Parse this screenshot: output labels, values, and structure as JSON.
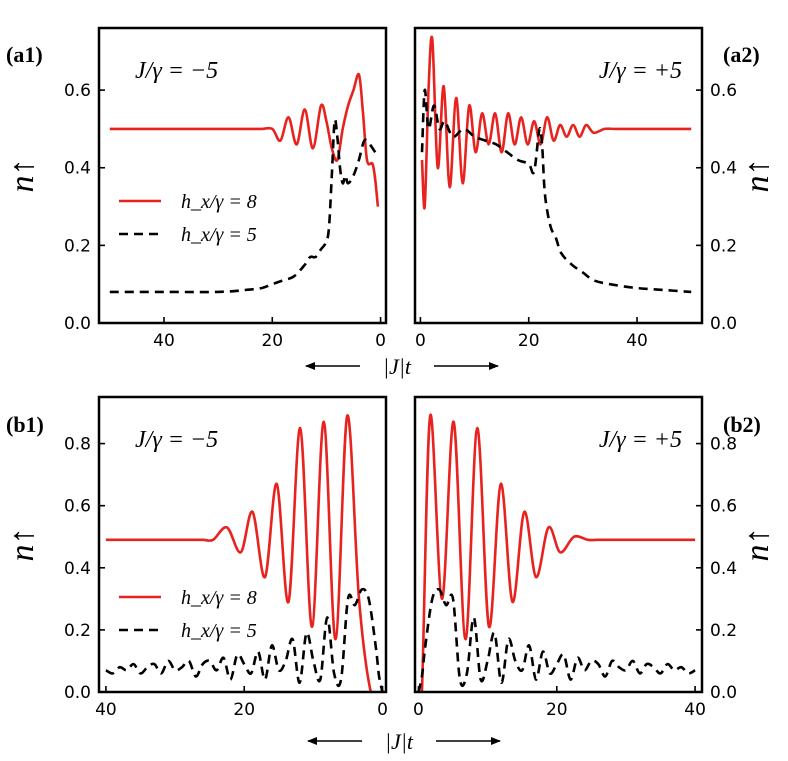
{
  "colors": {
    "red": "#e8231f",
    "black": "#000000"
  },
  "xlabel": "|J|t",
  "ylabel": "n↑",
  "legend": {
    "red": "h_x/γ = 8",
    "black": "h_x/γ = 5"
  },
  "chart_data": [
    {
      "id": "a1",
      "label": "(a1)",
      "type": "line",
      "annotation": "J/γ = −5",
      "xlim": [
        52,
        -1
      ],
      "ylim": [
        0,
        0.76
      ],
      "xticks": [
        40,
        20,
        0
      ],
      "yticks": [
        0.0,
        0.2,
        0.4,
        0.6
      ],
      "ylabel_side": "left",
      "legend": true,
      "series": [
        {
          "name": "h_x/γ = 8",
          "color": "#e8231f",
          "dash": false,
          "x": [
            50,
            45,
            40,
            35,
            30,
            25,
            22,
            20,
            18.5,
            17,
            15.5,
            14,
            12.5,
            11,
            10,
            9,
            8,
            7,
            6,
            5,
            4,
            3.3,
            2.5,
            1.5,
            1,
            0.5
          ],
          "y": [
            0.5,
            0.5,
            0.5,
            0.5,
            0.5,
            0.5,
            0.5,
            0.5,
            0.47,
            0.53,
            0.46,
            0.55,
            0.45,
            0.56,
            0.52,
            0.45,
            0.42,
            0.5,
            0.56,
            0.6,
            0.64,
            0.55,
            0.42,
            0.41,
            0.37,
            0.3
          ]
        },
        {
          "name": "h_x/γ = 5",
          "color": "#000000",
          "dash": true,
          "x": [
            50,
            40,
            30,
            25,
            22,
            20,
            18,
            16,
            14,
            13,
            12,
            11,
            10,
            9.5,
            9,
            8.5,
            8,
            7.5,
            7,
            6.5,
            6,
            5,
            4,
            3,
            2,
            1,
            0.5
          ],
          "y": [
            0.08,
            0.08,
            0.08,
            0.085,
            0.09,
            0.1,
            0.11,
            0.12,
            0.15,
            0.17,
            0.17,
            0.19,
            0.21,
            0.25,
            0.38,
            0.52,
            0.48,
            0.4,
            0.36,
            0.38,
            0.36,
            0.38,
            0.42,
            0.47,
            0.46,
            0.44,
            0.43
          ]
        }
      ]
    },
    {
      "id": "a2",
      "label": "(a2)",
      "type": "line",
      "annotation": "J/γ = +5",
      "xlim": [
        -1,
        52
      ],
      "ylim": [
        0,
        0.76
      ],
      "xticks": [
        0,
        20,
        40
      ],
      "yticks": [
        0.0,
        0.2,
        0.4,
        0.6
      ],
      "ylabel_side": "right",
      "legend": false,
      "series": [
        {
          "name": "h_x/γ = 8",
          "color": "#e8231f",
          "dash": false,
          "x": [
            0.3,
            0.8,
            1.5,
            2.2,
            3.2,
            4.3,
            5.4,
            6.6,
            7.8,
            9,
            10.2,
            11.4,
            12.6,
            13.8,
            15,
            16.2,
            17.4,
            18.6,
            19.8,
            21,
            22.2,
            23.4,
            24.6,
            25.8,
            27,
            28.2,
            29.4,
            30.6,
            32,
            34,
            36,
            40,
            45,
            50
          ],
          "y": [
            0.42,
            0.3,
            0.6,
            0.73,
            0.4,
            0.61,
            0.35,
            0.58,
            0.36,
            0.56,
            0.44,
            0.54,
            0.46,
            0.54,
            0.44,
            0.54,
            0.46,
            0.53,
            0.46,
            0.52,
            0.46,
            0.53,
            0.47,
            0.51,
            0.48,
            0.51,
            0.48,
            0.51,
            0.49,
            0.5,
            0.5,
            0.5,
            0.5,
            0.5
          ]
        },
        {
          "name": "h_x/γ = 5",
          "color": "#000000",
          "dash": true,
          "x": [
            0.3,
            0.8,
            1.5,
            2.5,
            3.5,
            4.5,
            6,
            8,
            10,
            12,
            14,
            16,
            18,
            20,
            21,
            22,
            22.5,
            23,
            24,
            25,
            26,
            28,
            30,
            32,
            35,
            40,
            45,
            50
          ],
          "y": [
            0.44,
            0.6,
            0.5,
            0.56,
            0.5,
            0.52,
            0.48,
            0.5,
            0.48,
            0.47,
            0.46,
            0.44,
            0.42,
            0.41,
            0.39,
            0.5,
            0.45,
            0.33,
            0.25,
            0.22,
            0.18,
            0.15,
            0.13,
            0.11,
            0.1,
            0.09,
            0.085,
            0.08
          ]
        }
      ]
    },
    {
      "id": "b1",
      "label": "(b1)",
      "type": "line",
      "annotation": "J/γ = −5",
      "xlim": [
        41,
        -0.5
      ],
      "ylim": [
        0,
        0.95
      ],
      "xticks": [
        40,
        20,
        0
      ],
      "yticks": [
        0.0,
        0.2,
        0.4,
        0.6,
        0.8
      ],
      "ylabel_side": "left",
      "legend": true,
      "series": [
        {
          "name": "h_x/γ = 8",
          "color": "#e8231f",
          "dash": false,
          "x": [
            40,
            36,
            32,
            28,
            26,
            24.5,
            22.5,
            20.5,
            18.8,
            17,
            15.3,
            13.6,
            11.9,
            10.2,
            8.5,
            6.8,
            5.1,
            3.4,
            1.7,
            0.5,
            0
          ],
          "y": [
            0.49,
            0.49,
            0.49,
            0.49,
            0.49,
            0.49,
            0.53,
            0.45,
            0.58,
            0.37,
            0.67,
            0.29,
            0.85,
            0.21,
            0.87,
            0.17,
            0.89,
            0.3,
            0.0,
            0.0,
            0.0
          ]
        },
        {
          "name": "h_x/γ = 5",
          "color": "#000000",
          "dash": true,
          "x": [
            40,
            39,
            38,
            37,
            36,
            35,
            34,
            33,
            32,
            31,
            30,
            29,
            28,
            27,
            26,
            25,
            24,
            23,
            22,
            21,
            20,
            19,
            18,
            17,
            16,
            15,
            14,
            13,
            12,
            11,
            10,
            9,
            8,
            7,
            6,
            5,
            4,
            3,
            2,
            1,
            0.5,
            0
          ],
          "y": [
            0.07,
            0.06,
            0.08,
            0.07,
            0.09,
            0.06,
            0.08,
            0.09,
            0.06,
            0.1,
            0.07,
            0.08,
            0.1,
            0.05,
            0.09,
            0.1,
            0.07,
            0.11,
            0.04,
            0.12,
            0.09,
            0.06,
            0.13,
            0.04,
            0.15,
            0.07,
            0.1,
            0.17,
            0.03,
            0.19,
            0.1,
            0.04,
            0.24,
            0.06,
            0.04,
            0.3,
            0.28,
            0.33,
            0.3,
            0.15,
            0.05,
            0.0
          ]
        }
      ]
    },
    {
      "id": "b2",
      "label": "(b2)",
      "type": "line",
      "annotation": "J/γ = +5",
      "xlim": [
        -0.5,
        41
      ],
      "ylim": [
        0,
        0.95
      ],
      "xticks": [
        0,
        20,
        40
      ],
      "yticks": [
        0.0,
        0.2,
        0.4,
        0.6,
        0.8
      ],
      "ylabel_side": "right",
      "legend": false,
      "series": [
        {
          "name": "h_x/γ = 8",
          "color": "#e8231f",
          "dash": false,
          "x": [
            0,
            0.5,
            1.7,
            3.4,
            5.1,
            6.8,
            8.5,
            10.2,
            11.9,
            13.6,
            15.3,
            17,
            18.8,
            20.5,
            22.5,
            24.5,
            26,
            28,
            32,
            36,
            40
          ],
          "y": [
            0.0,
            0.0,
            0.89,
            0.3,
            0.87,
            0.17,
            0.85,
            0.21,
            0.67,
            0.29,
            0.58,
            0.37,
            0.53,
            0.45,
            0.5,
            0.49,
            0.49,
            0.49,
            0.49,
            0.49,
            0.49
          ]
        },
        {
          "name": "h_x/γ = 5",
          "color": "#000000",
          "dash": true,
          "x": [
            0,
            0.5,
            1,
            2,
            3,
            4,
            5,
            6,
            7,
            8,
            9,
            10,
            11,
            12,
            13,
            14,
            15,
            16,
            17,
            18,
            19,
            20,
            21,
            22,
            23,
            24,
            25,
            26,
            27,
            28,
            29,
            30,
            31,
            32,
            33,
            34,
            35,
            36,
            37,
            38,
            39,
            40
          ],
          "y": [
            0.0,
            0.05,
            0.15,
            0.3,
            0.33,
            0.28,
            0.3,
            0.04,
            0.06,
            0.24,
            0.04,
            0.1,
            0.19,
            0.03,
            0.17,
            0.1,
            0.07,
            0.15,
            0.04,
            0.13,
            0.06,
            0.09,
            0.12,
            0.04,
            0.11,
            0.07,
            0.1,
            0.09,
            0.05,
            0.1,
            0.08,
            0.07,
            0.1,
            0.06,
            0.09,
            0.08,
            0.06,
            0.09,
            0.07,
            0.08,
            0.06,
            0.07
          ]
        }
      ]
    }
  ]
}
